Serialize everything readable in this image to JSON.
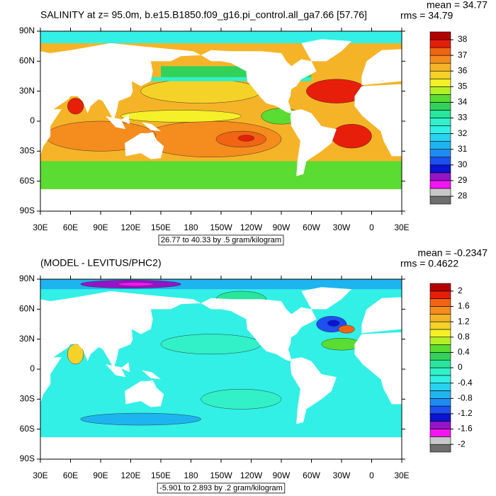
{
  "panels": [
    {
      "title": "SALINITY at z=  95.0m, b.e15.B1850.f09_g16.pi_control.all_ga7.66 [57.76]",
      "mean": "mean = 34.77",
      "rms": "rms = 34.79",
      "lat_labels": [
        "90N",
        "60N",
        "30N",
        "0",
        "30S",
        "60S",
        "90S"
      ],
      "lon_labels": [
        "30E",
        "60E",
        "90E",
        "120E",
        "150E",
        "180",
        "150W",
        "120W",
        "90W",
        "60W",
        "30W",
        "0",
        "30E"
      ],
      "range_note": "26.77 to 40.33 by .5 gram/kilogram",
      "colorbar": {
        "ticks": [
          28,
          29,
          30,
          31,
          32,
          33,
          34,
          35,
          36,
          37,
          38
        ],
        "colors": [
          "#6e6e6e",
          "#c8c8c8",
          "#f514f5",
          "#9614c8",
          "#0a14d2",
          "#1e50f0",
          "#1e8cf0",
          "#1eb4f0",
          "#28d2f0",
          "#32f0e6",
          "#32f0c8",
          "#28e69b",
          "#32d25a",
          "#5adc32",
          "#b4f028",
          "#f5f028",
          "#f5d228",
          "#f5b428",
          "#f58c1e",
          "#f06414",
          "#e61e0a",
          "#b40000"
        ]
      }
    },
    {
      "title": "(MODEL - LEVITUS/PHC2)",
      "mean": "mean = -0.2347",
      "rms": "rms = 0.4622",
      "lat_labels": [
        "90N",
        "60N",
        "30N",
        "0",
        "30S",
        "60S",
        "90S"
      ],
      "lon_labels": [
        "30E",
        "60E",
        "90E",
        "120E",
        "150E",
        "180",
        "150W",
        "120W",
        "90W",
        "60W",
        "30W",
        "0",
        "30E"
      ],
      "range_note": "-5.901 to 2.893 by .2 gram/kilogram",
      "colorbar": {
        "ticks": [
          -2,
          -1.6,
          -1.2,
          -0.8,
          -0.4,
          0,
          0.4,
          0.8,
          1.2,
          1.6,
          2
        ],
        "colors": [
          "#6e6e6e",
          "#c8c8c8",
          "#f514f5",
          "#9614c8",
          "#0a14d2",
          "#1e50f0",
          "#1e8cf0",
          "#1eb4f0",
          "#28d2f0",
          "#32f0e6",
          "#32f0c8",
          "#28e69b",
          "#32d25a",
          "#5adc32",
          "#b4f028",
          "#f5f028",
          "#f5d228",
          "#f5b428",
          "#f58c1e",
          "#f06414",
          "#e61e0a",
          "#b40000"
        ]
      }
    }
  ]
}
